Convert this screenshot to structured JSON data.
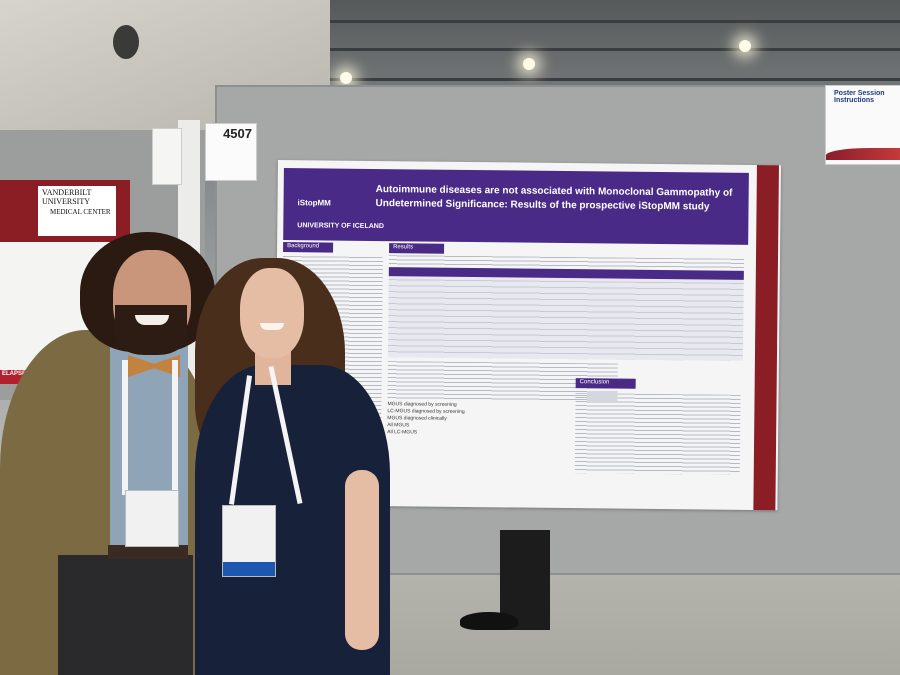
{
  "scene": {
    "booth_number": "4507",
    "instructions_card_title": "Poster Session Instructions",
    "left_poster_university": "VANDERBILT UNIVERSITY",
    "left_poster_center": "MEDICAL CENTER",
    "left_poster_tag": "ELAPSED"
  },
  "poster": {
    "title": "Autoimmune diseases are not associated with Monoclonal Gammopathy of Undetermined Significance: Results of the prospective iStopMM study",
    "logo_study": "iStopMM",
    "logo_university": "UNIVERSITY OF ICELAND",
    "sections": [
      "Background",
      "Results",
      "Conclusion"
    ],
    "plot_labels": [
      "MGUS diagnosed by screening",
      "LC-MGUS diagnosed by screening",
      "MGUS diagnosed clinically",
      "All MGUS",
      "All LC-MGUS"
    ]
  }
}
